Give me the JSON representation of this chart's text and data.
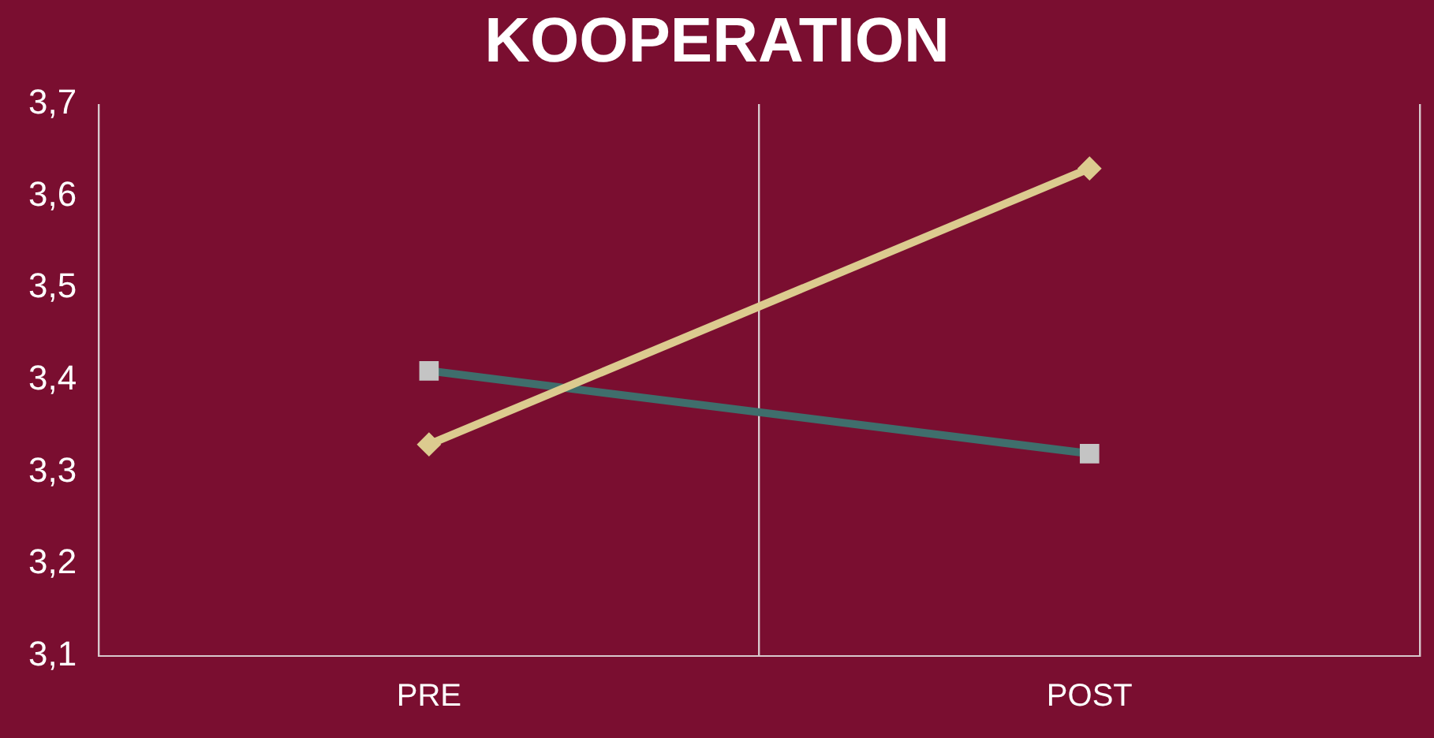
{
  "chart_data": {
    "type": "line",
    "title": "KOOPERATION",
    "categories": [
      "PRE",
      "POST"
    ],
    "series": [
      {
        "color": "#dccb8f",
        "values": [
          3.33,
          3.63
        ],
        "marker": "diamond"
      },
      {
        "color": "#3f6e6c",
        "values": [
          3.41,
          3.32
        ],
        "marker": "square"
      }
    ],
    "ylim": [
      3.1,
      3.7
    ],
    "yticks": [
      {
        "value": 3.1,
        "label": "3,1"
      },
      {
        "value": 3.2,
        "label": "3,2"
      },
      {
        "value": 3.3,
        "label": "3,3"
      },
      {
        "value": 3.4,
        "label": "3,4"
      },
      {
        "value": 3.5,
        "label": "3,5"
      },
      {
        "value": 3.6,
        "label": "3,6"
      },
      {
        "value": 3.7,
        "label": "3,7"
      }
    ],
    "grid": "x",
    "legend": false
  }
}
